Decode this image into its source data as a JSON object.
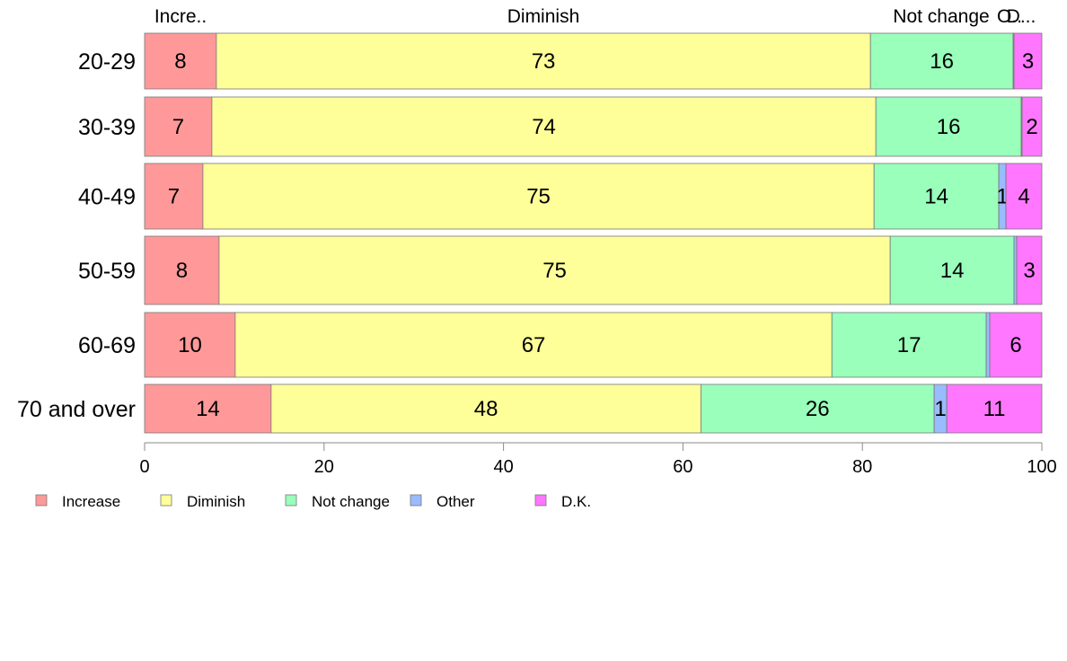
{
  "chart_data": {
    "type": "bar",
    "orientation": "horizontal",
    "stacked": true,
    "categories": [
      "20-29",
      "30-39",
      "40-49",
      "50-59",
      "60-69",
      "70 and over"
    ],
    "series": [
      {
        "name": "Increase",
        "values": [
          8,
          7.5,
          6.5,
          8.3,
          10.1,
          14.1
        ],
        "labels": [
          "8",
          "7",
          "7",
          "8",
          "10",
          "14"
        ]
      },
      {
        "name": "Diminish",
        "values": [
          72.9,
          74.0,
          74.8,
          74.8,
          66.5,
          47.9
        ],
        "labels": [
          "73",
          "74",
          "75",
          "75",
          "67",
          "48"
        ]
      },
      {
        "name": "Not change",
        "values": [
          15.9,
          16.2,
          13.9,
          13.8,
          17.2,
          26.0
        ],
        "labels": [
          "16",
          "16",
          "14",
          "14",
          "17",
          "26"
        ]
      },
      {
        "name": "Other",
        "values": [
          0.1,
          0.1,
          0.8,
          0.3,
          0.4,
          1.4
        ],
        "labels": [
          "",
          "",
          "1",
          "",
          "",
          "1"
        ]
      },
      {
        "name": "D.K.",
        "values": [
          3.1,
          2.2,
          4.0,
          2.8,
          5.8,
          10.6
        ],
        "labels": [
          "3",
          "2",
          "4",
          "3",
          "6",
          "11"
        ]
      }
    ],
    "top_labels": [
      "Incre..",
      "Diminish",
      "Not change",
      "O..",
      "D..."
    ],
    "xlim": [
      0,
      100
    ],
    "xticks": [
      0,
      20,
      40,
      60,
      80,
      100
    ],
    "xlabel": "",
    "ylabel": "",
    "title": "",
    "legend_position": "bottom-left",
    "grid": false,
    "colors": [
      "#ff9999",
      "#ffff99",
      "#99ffbb",
      "#99bbff",
      "#ff77ff"
    ]
  }
}
